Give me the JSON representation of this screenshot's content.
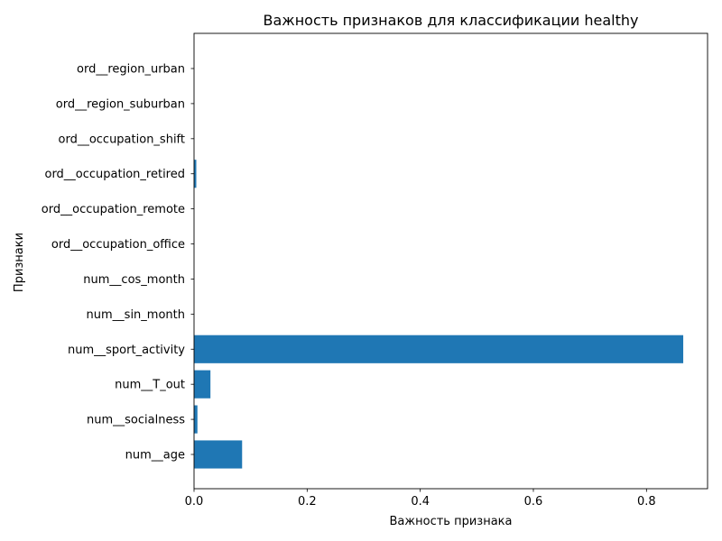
{
  "chart_data": {
    "type": "bar",
    "orientation": "horizontal",
    "title": "Важность признаков для классификации healthy",
    "xlabel": "Важность признака",
    "ylabel": "Признаки",
    "xlim": [
      0,
      0.908
    ],
    "xticks": [
      "0.0",
      "0.2",
      "0.4",
      "0.6",
      "0.8"
    ],
    "xtick_values": [
      0.0,
      0.2,
      0.4,
      0.6,
      0.8
    ],
    "categories": [
      "num__age",
      "num__socialness",
      "num__T_out",
      "num__sport_activity",
      "num__sin_month",
      "num__cos_month",
      "ord__occupation_office",
      "ord__occupation_remote",
      "ord__occupation_retired",
      "ord__occupation_shift",
      "ord__region_suburban",
      "ord__region_urban"
    ],
    "values": [
      0.085,
      0.006,
      0.029,
      0.865,
      0.0,
      0.0,
      0.0,
      0.0,
      0.004,
      0.0,
      0.0,
      0.0
    ],
    "bar_color": "#1f77b4",
    "grid": false
  }
}
